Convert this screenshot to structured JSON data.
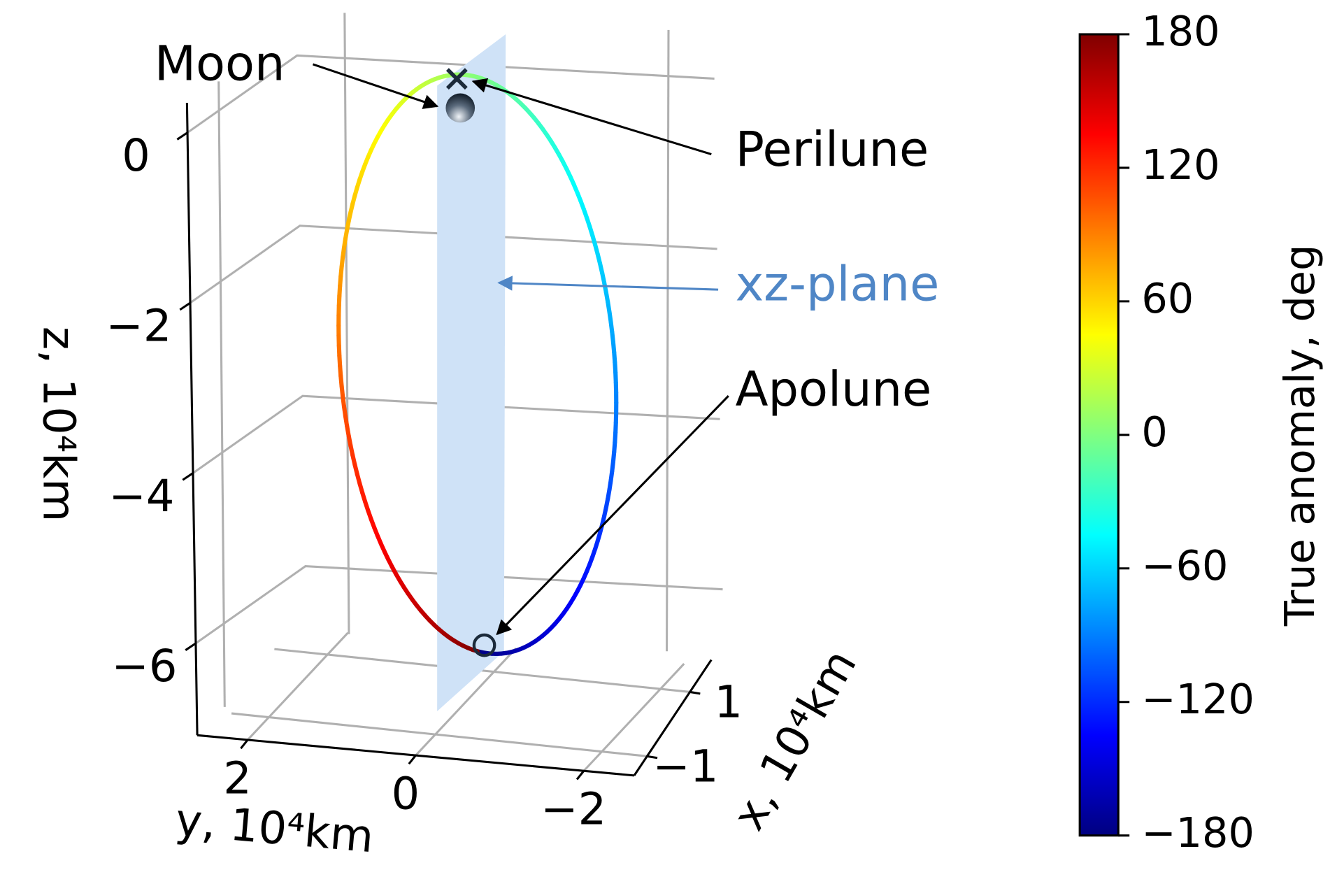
{
  "chart_data": {
    "type": "orbit3d",
    "xlabel": "x, 10⁴km",
    "xlim": [
      -1.6,
      2.0
    ],
    "xticks": [
      {
        "value": -1,
        "label": "−1"
      },
      1
    ],
    "ylabel": "y, 10⁴km",
    "ylim": [
      2.6,
      -2.6
    ],
    "yticks": [
      2,
      0,
      {
        "value": -2,
        "label": "−2"
      }
    ],
    "zlabel": "z, 10⁴km",
    "zlim": [
      -7.08,
      0.35
    ],
    "zticks": [
      0,
      {
        "value": -2,
        "label": "−2"
      },
      {
        "value": -4,
        "label": "−4"
      },
      {
        "value": -6,
        "label": "−6"
      }
    ],
    "grid": true,
    "annotations": {
      "moon": "Moon",
      "perilune": "Perilune",
      "plane": "xz-plane",
      "apolune": "Apolune"
    },
    "plane_color": "#cfe2f7",
    "plane_label_color": "#4f86c6",
    "colorbar": {
      "label": "True anomaly, deg",
      "colormap": "jet",
      "lim": [
        -180,
        180
      ],
      "ticks": [
        {
          "value": -180,
          "label": "−180"
        },
        {
          "value": -120,
          "label": "−120"
        },
        {
          "value": -60,
          "label": "−60"
        },
        0,
        60,
        120,
        180
      ]
    }
  }
}
